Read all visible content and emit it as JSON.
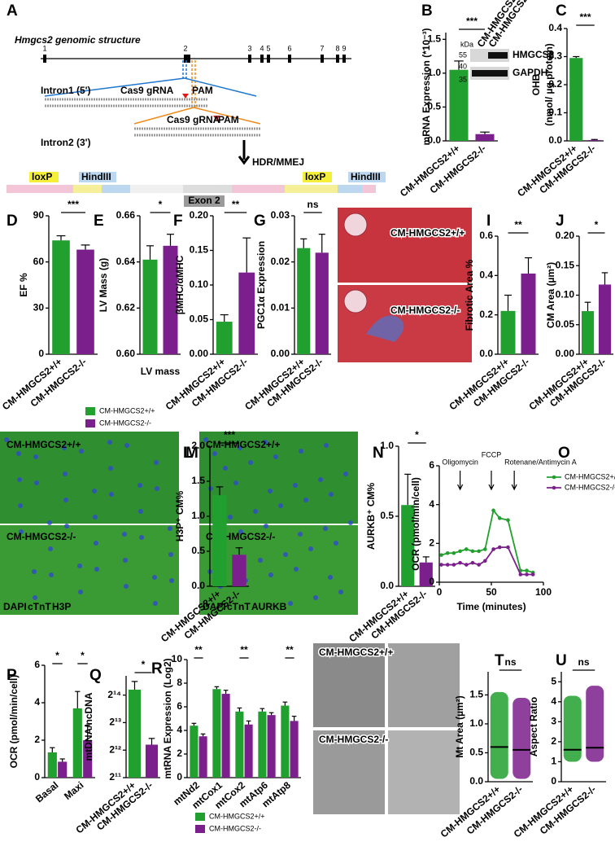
{
  "diagram": {
    "panel": "A",
    "title": "Hmgcs2 genomic structure",
    "exons": [
      "1",
      "2",
      "3",
      "4",
      "5",
      "6",
      "7",
      "8",
      "9"
    ],
    "intron1": "Intron1 (5')",
    "intron2": "Intron2 (3')",
    "grna": [
      "Cas9 gRNA",
      "Cas9 gRNA"
    ],
    "pam": [
      "PAM",
      "PAM"
    ],
    "repair": "HDR/MMEJ",
    "loxp": [
      "loxP",
      "loxP"
    ],
    "hindiii": [
      "HindIII",
      "HindIII"
    ],
    "exon2": "Exon 2"
  },
  "images": [
    {
      "panel": "H",
      "labels": [
        "CM-HMGCS2+/+",
        "CM-HMGCS2-/-"
      ]
    },
    {
      "panel": "K",
      "labels": [
        "CM-HMGCS2+/+",
        "CM-HMGCS2-/-"
      ],
      "stains": [
        "DAPI",
        "cTnT",
        "H3P"
      ]
    },
    {
      "panel": "M",
      "labels": [
        "CM-HMGCS2+/+",
        "CM-HMGCS2-/-"
      ],
      "stains": [
        "DAPI",
        "cTnT",
        "AURKB"
      ]
    },
    {
      "panel": "S",
      "labels": [
        "CM-HMGCS2+/+",
        "CM-HMGCS2-/-"
      ]
    }
  ],
  "legend": [
    {
      "name": "CM-HMGCS2+/+",
      "color": "#22a02f"
    },
    {
      "name": "CM-HMGCS2-/-",
      "color": "#7b1f8c"
    }
  ],
  "chart_data": [
    {
      "type": "bar",
      "panel": "B",
      "ylabel": "mRNA Expression (*10⁻³)",
      "categories": [
        "CM-HMGCS2+/+",
        "CM-HMGCS2-/-"
      ],
      "values": [
        1.05,
        0.1
      ],
      "errors": [
        0.13,
        0.03
      ],
      "colors": [
        "#22a02f",
        "#7b1f8c"
      ],
      "ylim": [
        0,
        1.6
      ],
      "yticks": [
        {
          "value": 0,
          "label": "0.0"
        },
        0.5,
        {
          "value": 1,
          "label": "1.0"
        },
        1.5
      ],
      "significance": "***",
      "blot": {
        "kda": "kDa",
        "markers": [
          "55",
          "40",
          "35"
        ],
        "bands": [
          "HMGCS2",
          "GAPDH"
        ],
        "lanes": [
          "CM-HMGCS2-/-",
          "CM-HMGCS2+/+"
        ]
      }
    },
    {
      "type": "bar",
      "panel": "C",
      "ylabel": [
        "OHB",
        "(nmol/ µg protein)"
      ],
      "categories": [
        "CM-HMGCS2+/+",
        "CM-HMGCS2-/-"
      ],
      "values": [
        0.295,
        0.003
      ],
      "errors": [
        0.005,
        0.002
      ],
      "colors": [
        "#22a02f",
        "#7b1f8c"
      ],
      "ylim": [
        0,
        0.4
      ],
      "yticks": [
        {
          "value": 0,
          "label": "0.0"
        },
        0.1,
        0.2,
        0.3,
        0.4
      ],
      "significance": "***"
    },
    {
      "type": "bar",
      "panel": "D",
      "ylabel": "EF %",
      "categories": [
        "CM-HMGCS2+/+",
        "CM-HMGCS2-/-"
      ],
      "values": [
        74,
        68
      ],
      "errors": [
        3,
        3
      ],
      "colors": [
        "#22a02f",
        "#7b1f8c"
      ],
      "ylim": [
        0,
        90
      ],
      "yticks": [
        0,
        30,
        60,
        90
      ],
      "significance": "***"
    },
    {
      "type": "bar",
      "panel": "E",
      "ylabel": "LV Mass (g)",
      "xlabel": "LV mass",
      "categories": [
        null,
        null
      ],
      "values": [
        0.641,
        0.647
      ],
      "errors": [
        0.006,
        0.005
      ],
      "colors": [
        "#22a02f",
        "#7b1f8c"
      ],
      "ylim": [
        0.6,
        0.66
      ],
      "yticks": [
        {
          "value": 0.6,
          "label": "0.60"
        },
        0.62,
        0.64,
        0.66
      ],
      "significance": "*"
    },
    {
      "type": "bar",
      "panel": "F",
      "ylabel": "βMHC/αMHC",
      "categories": [
        "CM-HMGCS2+/+",
        "CM-HMGCS2-/-"
      ],
      "values": [
        0.047,
        0.118
      ],
      "errors": [
        0.01,
        0.05
      ],
      "colors": [
        "#22a02f",
        "#7b1f8c"
      ],
      "ylim": [
        0,
        0.2
      ],
      "yticks": [
        {
          "value": 0,
          "label": "0.00"
        },
        0.05,
        {
          "value": 0.1,
          "label": "0.10"
        },
        0.15,
        {
          "value": 0.2,
          "label": "0.20"
        }
      ],
      "significance": "**"
    },
    {
      "type": "bar",
      "panel": "G",
      "ylabel": "PGC1α Expression",
      "categories": [
        "CM-HMGCS2+/+",
        "CM-HMGCS2-/-"
      ],
      "values": [
        0.023,
        0.022
      ],
      "errors": [
        0.002,
        0.004
      ],
      "colors": [
        "#22a02f",
        "#7b1f8c"
      ],
      "ylim": [
        0,
        0.03
      ],
      "yticks": [
        {
          "value": 0,
          "label": "0.00"
        },
        0.01,
        0.02,
        0.03
      ],
      "significance": "ns"
    },
    {
      "type": "bar",
      "panel": "I",
      "ylabel": "Fibrotic Area %",
      "categories": [
        "CM-HMGCS2+/+",
        "CM-HMGCS2-/-"
      ],
      "values": [
        0.22,
        0.41
      ],
      "errors": [
        0.08,
        0.08
      ],
      "colors": [
        "#22a02f",
        "#7b1f8c"
      ],
      "ylim": [
        0,
        0.6
      ],
      "yticks": [
        {
          "value": 0,
          "label": "0.0"
        },
        0.2,
        0.4,
        0.6
      ],
      "significance": "**"
    },
    {
      "type": "bar",
      "panel": "J",
      "ylabel": "CM Area (µm²)",
      "categories": [
        "CM-HMGCS2+/+",
        "CM-HMGCS2-/-"
      ],
      "values": [
        0.073,
        0.118
      ],
      "errors": [
        0.015,
        0.02
      ],
      "colors": [
        "#22a02f",
        "#7b1f8c"
      ],
      "ylim": [
        0,
        0.2
      ],
      "yticks": [
        {
          "value": 0,
          "label": "0.00"
        },
        0.05,
        {
          "value": 0.1,
          "label": "0.10"
        },
        0.15,
        {
          "value": 0.2,
          "label": "0.20"
        }
      ],
      "significance": "*"
    },
    {
      "type": "bar",
      "panel": "L",
      "ylabel": "H3P⁺ CM%",
      "categories": [
        "CM-HMGCS2+/+",
        "CM-HMGCS2-/-"
      ],
      "values": [
        1.3,
        0.45
      ],
      "errors": [
        0.12,
        0.1
      ],
      "colors": [
        "#22a02f",
        "#7b1f8c"
      ],
      "ylim": [
        0,
        2
      ],
      "yticks": [
        {
          "value": 0,
          "label": "0.0"
        },
        0.5,
        {
          "value": 1,
          "label": "1.0"
        },
        1.5,
        {
          "value": 2,
          "label": "2.0"
        }
      ],
      "significance": "***"
    },
    {
      "type": "bar",
      "panel": "N",
      "ylabel": "AURKB⁺ CM%",
      "categories": [
        "CM-HMGCS2+/+",
        "CM-HMGCS2-/-"
      ],
      "values": [
        0.58,
        0.17
      ],
      "errors": [
        0.22,
        0.04
      ],
      "colors": [
        "#22a02f",
        "#7b1f8c"
      ],
      "ylim": [
        0,
        1
      ],
      "yticks": [
        {
          "value": 0,
          "label": "0.0"
        },
        0.5,
        {
          "value": 1,
          "label": "1.0"
        }
      ],
      "significance": "*"
    },
    {
      "type": "line",
      "panel": "O",
      "xlabel": "Time (minutes)",
      "ylabel": "OCR (pmol/min/cell)",
      "x": [
        2,
        8,
        14,
        20,
        26,
        32,
        38,
        44,
        52,
        58,
        66,
        78,
        84,
        90
      ],
      "series": [
        {
          "name": "CM-HMGCS2+/+",
          "color": "#22a02f",
          "values": [
            1.4,
            1.5,
            1.5,
            1.6,
            1.7,
            1.6,
            1.6,
            1.7,
            3.7,
            3.3,
            3.2,
            0.6,
            0.6,
            0.5
          ]
        },
        {
          "name": "CM-HMGCS2-/-",
          "color": "#7b1f8c",
          "values": [
            0.9,
            0.9,
            0.9,
            1.0,
            0.9,
            1.0,
            0.9,
            1.1,
            1.7,
            1.8,
            1.8,
            0.4,
            0.4,
            0.4
          ]
        }
      ],
      "xlim": [
        0,
        100
      ],
      "xticks": [
        0,
        50,
        100
      ],
      "ylim": [
        0,
        6
      ],
      "yticks": [
        0,
        2,
        4,
        6
      ],
      "annotations": [
        {
          "label": "Oligomycin",
          "x": 20
        },
        {
          "label": "FCCP",
          "x": 50
        },
        {
          "label": "Rotenane/Antimycin A",
          "x": 72
        }
      ]
    },
    {
      "type": "grouped",
      "panel": "P",
      "ylabel": "OCR (pmol/min/cell)",
      "categories": [
        "Basal",
        "Maxi"
      ],
      "series": [
        {
          "name": "CM-HMGCS2+/+",
          "color": "#22a02f",
          "values": [
            1.35,
            3.7
          ],
          "errors": [
            0.25,
            0.9
          ]
        },
        {
          "name": "CM-HMGCS2-/-",
          "color": "#7b1f8c",
          "values": [
            0.85,
            2.0
          ],
          "errors": [
            0.15,
            0.8
          ]
        }
      ],
      "ylim": [
        0,
        6
      ],
      "yticks": [
        0,
        2,
        4,
        6
      ],
      "significance": [
        "*",
        "*"
      ]
    },
    {
      "type": "bar",
      "panel": "Q",
      "ylabel": "mtDNA/ncDNA",
      "log_base": 2,
      "categories": [
        "CM-HMGCS2+/+",
        "CM-HMGCS2-/-"
      ],
      "values": [
        18800,
        4700
      ],
      "errors": [
        4300,
        800
      ],
      "colors": [
        "#22a02f",
        "#7b1f8c"
      ],
      "ylim": [
        2048,
        26600
      ],
      "yticks": [
        {
          "value": 2048,
          "label": "2¹¹"
        },
        {
          "value": 4096,
          "label": "2¹²"
        },
        {
          "value": 8192,
          "label": "2¹³"
        },
        {
          "value": 16384,
          "label": "2¹⁴"
        }
      ],
      "significance": "*"
    },
    {
      "type": "grouped",
      "panel": "R",
      "ylabel": "mtRNA Expression (Log2)",
      "categories": [
        "mtNd2",
        "mtCox1",
        "mtCox2",
        "mtAtp6",
        "mtAtp8"
      ],
      "series": [
        {
          "name": "CM-HMGCS2+/+",
          "color": "#22a02f",
          "values": [
            4.4,
            7.5,
            5.6,
            5.6,
            6.1
          ],
          "errors": [
            0.2,
            0.2,
            0.3,
            0.25,
            0.3
          ]
        },
        {
          "name": "CM-HMGCS2-/-",
          "color": "#7b1f8c",
          "values": [
            3.5,
            7.1,
            4.5,
            5.3,
            4.8
          ],
          "errors": [
            0.2,
            0.3,
            0.3,
            0.2,
            0.4
          ]
        }
      ],
      "ylim": [
        0,
        10
      ],
      "yticks": [
        0,
        2,
        4,
        6,
        8,
        10
      ],
      "significance": [
        "**",
        null,
        "**",
        null,
        "**"
      ]
    },
    {
      "type": "strip",
      "panel": "T",
      "ylabel": "Mt Area (µm²)",
      "categories": [
        "CM-HMGCS2+/+",
        "CM-HMGCS2-/-"
      ],
      "medians": [
        0.6,
        0.55
      ],
      "ranges": [
        [
          0.05,
          1.55
        ],
        [
          0.05,
          1.45
        ]
      ],
      "colors": [
        "#22a02f",
        "#7b1f8c"
      ],
      "ylim": [
        0,
        1.9
      ],
      "yticks": [
        {
          "value": 0,
          "label": "0.0"
        },
        0.5,
        {
          "value": 1,
          "label": "1.0"
        },
        1.5
      ],
      "significance": "ns"
    },
    {
      "type": "strip",
      "panel": "U",
      "ylabel": "Aspect Ratio",
      "categories": [
        "CM-HMGCS2+/+",
        "CM-HMGCS2-/-"
      ],
      "medians": [
        1.6,
        1.7
      ],
      "ranges": [
        [
          1.0,
          4.3
        ],
        [
          1.0,
          4.8
        ]
      ],
      "colors": [
        "#22a02f",
        "#7b1f8c"
      ],
      "ylim": [
        0,
        5.5
      ],
      "yticks": [
        0,
        1,
        2,
        3,
        4,
        5
      ],
      "significance": "ns"
    }
  ]
}
